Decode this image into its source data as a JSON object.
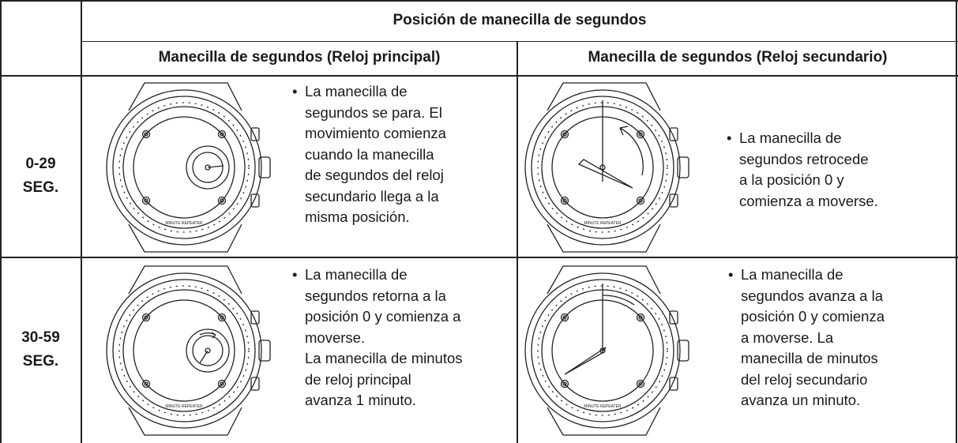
{
  "header": {
    "title": "Posición de manecilla de segundos",
    "columns": [
      "Manecilla de segundos (Reloj principal)",
      "Manecilla de segundos (Reloj secundario)"
    ]
  },
  "rows": [
    {
      "label": [
        "0-29",
        "SEG."
      ],
      "cells": [
        {
          "lines": [
            "La manecilla de",
            "segundos se para. El",
            "movimiento comienza",
            "cuando la manecilla",
            "de segundos del reloj",
            "secundario llega a la",
            "misma posición."
          ]
        },
        {
          "lines": [
            "La manecilla de",
            "segundos retrocede",
            "a la posición 0 y",
            "comienza a moverse."
          ]
        }
      ]
    },
    {
      "label": [
        "30-59",
        "SEG."
      ],
      "cells": [
        {
          "lines": [
            "La manecilla de",
            "segundos retorna a la",
            "posición 0 y comienza a",
            "moverse.",
            "La manecilla de minutos",
            "de reloj principal",
            "avanza 1 minuto."
          ]
        },
        {
          "lines": [
            "La manecilla de",
            "segundos avanza a la",
            "posición 0 y comienza",
            "a moverse. La",
            "manecilla de minutos",
            "del reloj secundario",
            "avanza un minuto."
          ]
        }
      ]
    }
  ],
  "watch_label": "MINUTE REPEATER"
}
